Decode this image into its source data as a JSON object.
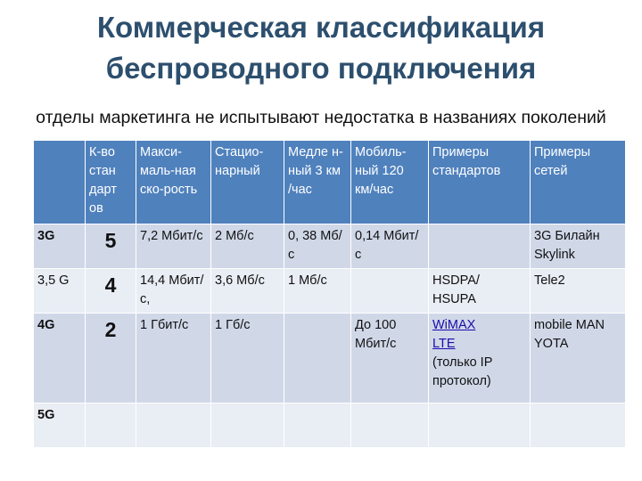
{
  "title": {
    "line1": "Коммерческая классификация",
    "line2": "беспроводного подключения"
  },
  "subtitle": "отделы маркетинга не испытывают недостатка в названиях поколений",
  "colors": {
    "title": "#2d4f6e",
    "header": "#4f81bd",
    "row_dark": "#d0d8e8",
    "row_light": "#e9edf4",
    "link": "#1a0dab"
  },
  "table": {
    "headers": [
      "",
      "К-во стан дарт ов",
      "Макси-маль-ная ско-рость",
      "Стацио-нарный",
      "Медле н-ный 3 км /час",
      "Мобиль-ный 120 км/час",
      "Примеры стандартов",
      "Примеры сетей"
    ],
    "rows": [
      {
        "gen": "3G",
        "count": "5",
        "max": "7,2 Мбит/с",
        "stationary": "2 Мб/с",
        "slow": "0, 38 Мб/с",
        "mobile": "0,14 Мбит/с",
        "standards": [],
        "standards_note": "",
        "networks": "3G Билайн Skylink"
      },
      {
        "gen": "3,5 G",
        "count": "4",
        "max": "14,4 Мбит/с,",
        "stationary": "3,6 Мб/с",
        "slow": "1 Мб/с",
        "mobile": "",
        "standards": [],
        "standards_note": "HSDPA/ HSUPA",
        "networks": "Tele2"
      },
      {
        "gen": "4G",
        "count": "2",
        "max": "1 Гбит/с",
        "stationary": "1 Гб/с",
        "slow": "",
        "mobile": "До 100 Мбит/с",
        "standards": [
          "WiMAX",
          "LTE"
        ],
        "standards_note": "(только IP протокол)",
        "networks": "mobile MAN YOTA"
      },
      {
        "gen": "5G",
        "count": "",
        "max": "",
        "stationary": "",
        "slow": "",
        "mobile": "",
        "standards": [],
        "standards_note": "",
        "networks": ""
      }
    ]
  }
}
